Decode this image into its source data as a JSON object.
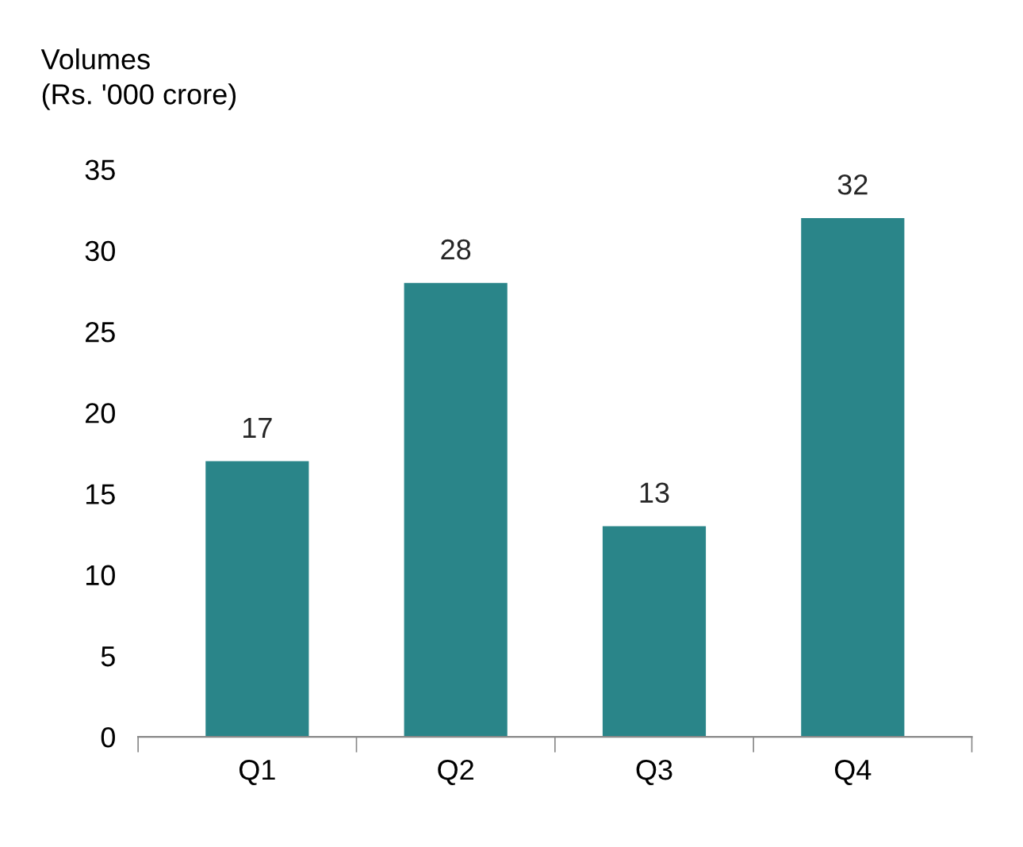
{
  "chart_data": {
    "type": "bar",
    "ylabel": "Volumes\n(Rs. '000 crore)",
    "categories": [
      "Q1",
      "Q2",
      "Q3",
      "Q4"
    ],
    "values": [
      17,
      28,
      13,
      32
    ],
    "color": "#2a8589",
    "ylim": [
      0,
      35
    ],
    "yticks": [
      0,
      5,
      10,
      15,
      20,
      25,
      30,
      35
    ],
    "data_labels": true,
    "grid": false,
    "legend": false
  }
}
